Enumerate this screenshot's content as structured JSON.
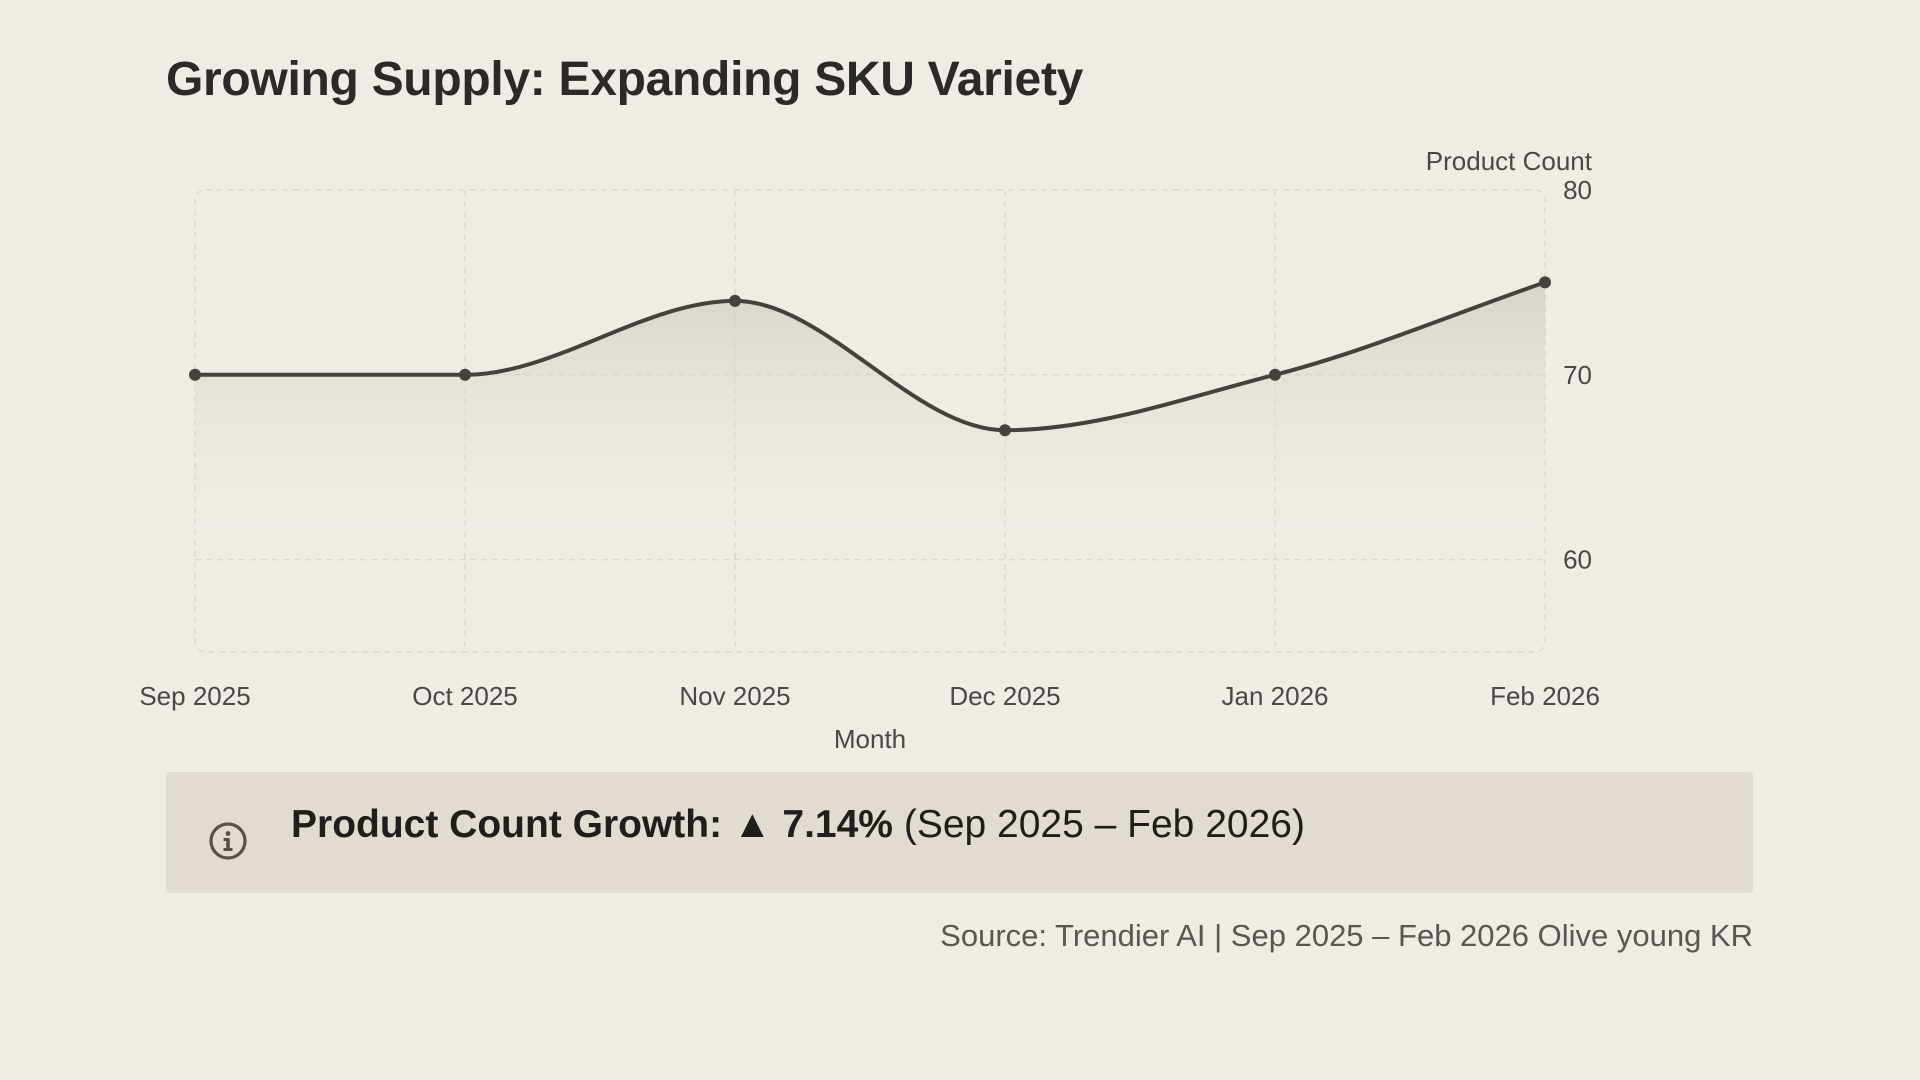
{
  "title": "Growing Supply: Expanding SKU Variety",
  "chart_data": {
    "type": "line",
    "title": "Growing Supply: Expanding SKU Variety",
    "categories": [
      "Sep 2025",
      "Oct 2025",
      "Nov 2025",
      "Dec 2025",
      "Jan 2026",
      "Feb 2026"
    ],
    "series": [
      {
        "name": "Product Count",
        "values": [
          70,
          70,
          74,
          67,
          70,
          75
        ]
      }
    ],
    "xlabel": "Month",
    "ylabel": "Product Count",
    "ylim": [
      55,
      80
    ],
    "yticks": [
      80,
      70,
      60
    ],
    "y_axis_position": "right",
    "grid": true,
    "area_fill": true
  },
  "callout": {
    "icon": "info-icon",
    "label": "Product Count Growth:",
    "change": "▲ 7.14%",
    "range": "(Sep 2025 – Feb 2026)"
  },
  "source": "Source: Trendier AI | Sep 2025 – Feb 2026 Olive young KR",
  "colors": {
    "background": "#efece6",
    "line": "#45413c",
    "callout_bg": "#e1dbd1",
    "grid": "#dcd8d1"
  }
}
